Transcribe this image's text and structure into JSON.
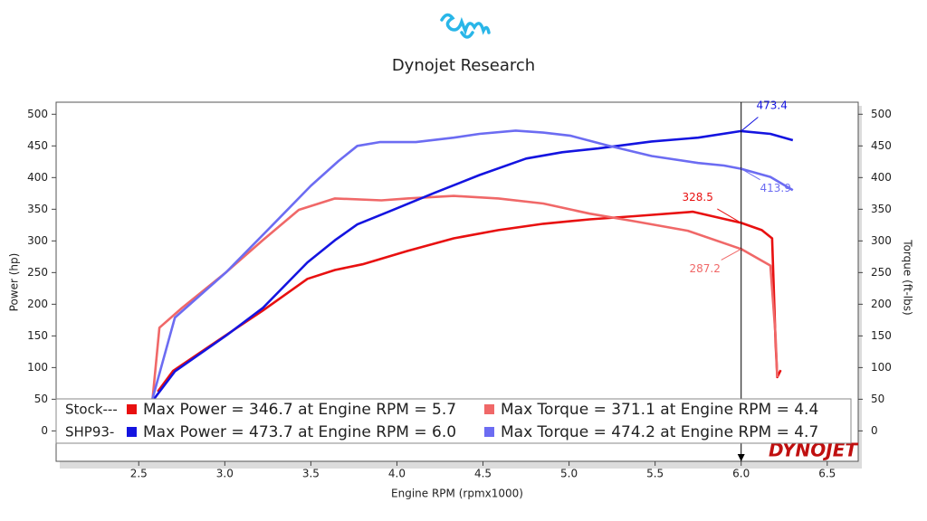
{
  "chart_data": {
    "type": "line",
    "title": "Dynojet Research",
    "watermark": "DYNOJET",
    "x_label": "Engine RPM (rpmx1000)",
    "y_label": "Power (hp)",
    "y2_label": "Torque (ft-lbs)",
    "xlim": [
      2.02,
      6.68
    ],
    "ylim": [
      -48,
      519
    ],
    "y2lim": [
      -48,
      519
    ],
    "xticks": [
      2.5,
      {
        "value": 3,
        "label": "3.0"
      },
      3.5,
      {
        "value": 4,
        "label": "4.0"
      },
      4.5,
      {
        "value": 5,
        "label": "5.0"
      },
      5.5,
      {
        "value": 6,
        "label": "6.0"
      },
      6.5
    ],
    "yticks": [
      0,
      50,
      100,
      150,
      200,
      250,
      300,
      350,
      400,
      450,
      500
    ],
    "y2ticks": [
      0,
      50,
      100,
      150,
      200,
      250,
      300,
      350,
      400,
      450,
      500
    ],
    "grid": false,
    "cursor_x": 6.0,
    "legend_groups": [
      "Stock---",
      "SHP93-"
    ],
    "series": [
      {
        "name": "Max Power = 346.7 at Engine RPM = 5.7",
        "group": 0,
        "color": "#e81010",
        "axis": "y",
        "x": [
          2.61,
          2.7,
          3.0,
          3.22,
          3.48,
          3.64,
          3.8,
          4.06,
          4.33,
          4.59,
          4.85,
          5.12,
          5.38,
          5.72,
          6.0,
          6.12,
          6.18,
          6.2,
          6.21,
          6.23
        ],
        "values": [
          62,
          95,
          150,
          190,
          240,
          254,
          263,
          284,
          304,
          317,
          327,
          334,
          339,
          346,
          328.5,
          317,
          304,
          140,
          85,
          96
        ],
        "cursor_value": 328.5
      },
      {
        "name": "Max Torque = 371.1 at Engine RPM = 4.4",
        "group": 0,
        "color": "#f06868",
        "axis": "y2",
        "x": [
          2.58,
          2.62,
          2.75,
          3.01,
          3.22,
          3.43,
          3.64,
          3.91,
          4.06,
          4.33,
          4.59,
          4.85,
          5.12,
          5.38,
          5.69,
          6.0,
          6.17,
          6.2,
          6.21
        ],
        "values": [
          50,
          163,
          194,
          251,
          301,
          349,
          367,
          364,
          367,
          371,
          367,
          359,
          343,
          331,
          316,
          287.2,
          261,
          150,
          85
        ],
        "cursor_value": 287.2
      },
      {
        "name": "Max Power = 473.7 at Engine RPM = 6.0",
        "group": 1,
        "color": "#1414e0",
        "axis": "y",
        "x": [
          2.59,
          2.71,
          3.01,
          3.22,
          3.48,
          3.64,
          3.77,
          3.96,
          4.22,
          4.48,
          4.75,
          4.96,
          5.17,
          5.48,
          5.75,
          6.0,
          6.17,
          6.3
        ],
        "values": [
          51,
          94,
          151,
          194,
          266,
          301,
          326,
          347,
          376,
          404,
          430,
          440,
          446,
          457,
          463,
          473.4,
          469,
          459
        ],
        "cursor_value": 473.4
      },
      {
        "name": "Max Torque = 474.2 at Engine RPM = 4.7",
        "group": 1,
        "color": "#6c6cf2",
        "axis": "y2",
        "x": [
          2.58,
          2.71,
          3.01,
          3.27,
          3.5,
          3.66,
          3.77,
          3.9,
          4.11,
          4.33,
          4.48,
          4.69,
          4.85,
          5.01,
          5.22,
          5.48,
          5.75,
          5.9,
          6.0,
          6.17,
          6.3
        ],
        "values": [
          51,
          179,
          251,
          323,
          387,
          426,
          450,
          456,
          456,
          463,
          469,
          474.2,
          471,
          466,
          451,
          434,
          423,
          419,
          413.9,
          401,
          380
        ],
        "cursor_value": 413.9
      }
    ]
  }
}
